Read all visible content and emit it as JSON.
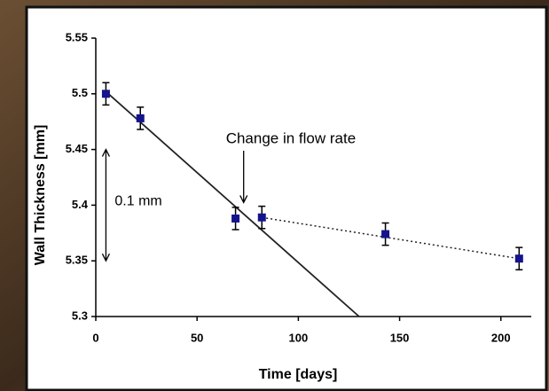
{
  "chart_data": {
    "type": "scatter",
    "x_label": "Time [days]",
    "y_label": "Wall Thickness [mm]",
    "xlim": [
      0,
      215
    ],
    "ylim": [
      5.3,
      5.55
    ],
    "xticks": [
      0,
      50,
      100,
      150,
      200
    ],
    "yticks": [
      5.3,
      5.35,
      5.4,
      5.45,
      5.5,
      5.55
    ],
    "series": [
      {
        "x": [
          5,
          22,
          69,
          82,
          143,
          209
        ],
        "values": [
          5.5,
          5.478,
          5.388,
          5.389,
          5.374,
          5.352
        ],
        "errors": [
          0.01,
          0.01,
          0.01,
          0.01,
          0.01,
          0.01
        ],
        "color": "#14148c"
      }
    ],
    "lines": [
      {
        "x": [
          5,
          130
        ],
        "values": [
          5.502,
          5.3
        ],
        "color": "#222222",
        "dash": false
      },
      {
        "x": [
          82,
          209
        ],
        "values": [
          5.389,
          5.352
        ],
        "color": "#222222",
        "dash": true
      }
    ],
    "annotations": [
      {
        "text": "Change in flow rate",
        "x": 73,
        "y": 5.396
      },
      {
        "text": "0.1 mm",
        "x": 5,
        "y_from": 5.35,
        "y_to": 5.45
      }
    ]
  }
}
